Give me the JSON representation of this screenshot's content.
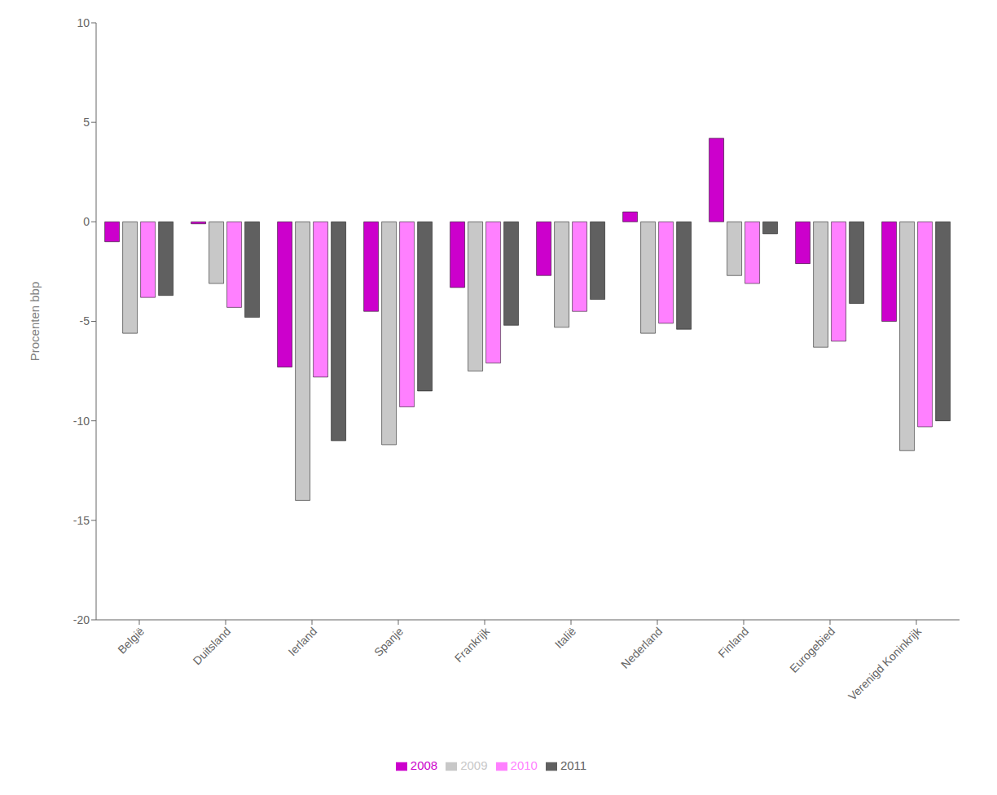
{
  "chart_data": {
    "type": "bar",
    "categories": [
      "België",
      "Duitsland",
      "Ierland",
      "Spanje",
      "Frankrijk",
      "Italië",
      "Nederland",
      "Finland",
      "Eurogebied",
      "Verenigd Koninkrijk"
    ],
    "series": [
      {
        "name": "2008",
        "color": "#CC00CC",
        "values": [
          -1.0,
          -0.1,
          -7.3,
          -4.5,
          -3.3,
          -2.7,
          0.5,
          4.2,
          -2.1,
          -5.0
        ]
      },
      {
        "name": "2009",
        "color": "#C8C8C8",
        "values": [
          -5.6,
          -3.1,
          -14.0,
          -11.2,
          -7.5,
          -5.3,
          -5.6,
          -2.7,
          -6.3,
          -11.5
        ]
      },
      {
        "name": "2010",
        "color": "#FF80FF",
        "values": [
          -3.8,
          -4.3,
          -7.8,
          -9.3,
          -7.1,
          -4.5,
          -5.1,
          -3.1,
          -6.0,
          -10.3
        ]
      },
      {
        "name": "2011",
        "color": "#606060",
        "values": [
          -3.7,
          -4.8,
          -11.0,
          -8.5,
          -5.2,
          -3.9,
          -5.4,
          -0.6,
          -4.1,
          -10.0
        ]
      }
    ],
    "ylabel": "Procenten bbp",
    "ylim": [
      -20,
      10
    ],
    "yticks": [
      -20,
      -15,
      -10,
      -5,
      0,
      5,
      10
    ],
    "grid": false,
    "legend": "bottom"
  }
}
